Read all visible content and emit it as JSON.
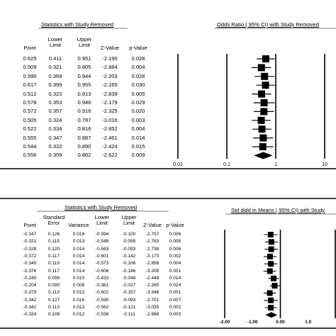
{
  "chart_data": [
    {
      "type": "table",
      "title": "Statistics with Study Removed",
      "columns": [
        "Point",
        "Lower\nLimit",
        "Upper\nLimit",
        "Z-Value",
        "p-Value"
      ],
      "rows": [
        [
          "0.625",
          "0.411",
          "0.951",
          "-2.195",
          "0.028"
        ],
        [
          "0.509",
          "0.321",
          "0.805",
          "-2.884",
          "0.004"
        ],
        [
          "0.590",
          "0.369",
          "0.944",
          "-2.203",
          "0.028"
        ],
        [
          "0.617",
          "0.399",
          "0.955",
          "-2.165",
          "0.030"
        ],
        [
          "0.512",
          "0.323",
          "0.813",
          "-2.839",
          "0.005"
        ],
        [
          "0.578",
          "0.353",
          "0.946",
          "-2.179",
          "0.029"
        ],
        [
          "0.572",
          "0.357",
          "0.916",
          "-2.325",
          "0.020"
        ],
        [
          "0.505",
          "0.324",
          "0.787",
          "-3.016",
          "0.003"
        ],
        [
          "0.522",
          "0.334",
          "0.816",
          "-2.852",
          "0.004"
        ],
        [
          "0.555",
          "0.347",
          "0.887",
          "-2.461",
          "0.014"
        ],
        [
          "0.544",
          "0.332",
          "0.890",
          "-2.424",
          "0.015"
        ],
        [
          "0.556",
          "0.359",
          "0.862",
          "-2.622",
          "0.009"
        ]
      ],
      "plot": {
        "type": "scatter",
        "title": "Odds Ratio ( 95% CI) with Study Removed",
        "xscale": "log",
        "xlim": [
          0.01,
          10
        ],
        "xticks": [
          "0.01",
          "0.1",
          "1",
          "10"
        ],
        "x": [
          0.625,
          0.509,
          0.59,
          0.617,
          0.512,
          0.578,
          0.572,
          0.505,
          0.522,
          0.555,
          0.544,
          0.556
        ],
        "lower": [
          0.411,
          0.321,
          0.369,
          0.399,
          0.323,
          0.353,
          0.357,
          0.324,
          0.334,
          0.347,
          0.332,
          0.359
        ],
        "upper": [
          0.951,
          0.805,
          0.944,
          0.955,
          0.813,
          0.946,
          0.916,
          0.787,
          0.816,
          0.887,
          0.89,
          0.862
        ],
        "summary_last_row": true
      }
    },
    {
      "type": "table",
      "title": "Statistics with Study Removed",
      "columns": [
        "Point",
        "Standard\nError",
        "Variance",
        "Lower\nLimit",
        "Upper\nLimit",
        "Z-Value",
        "p-Value"
      ],
      "rows": [
        [
          "-0.347",
          "0.126",
          "0.016",
          "-0.594",
          "-0.100",
          "-2.757",
          "0.006"
        ],
        [
          "-0.321",
          "0.115",
          "0.013",
          "-0.548",
          "-0.095",
          "-2.783",
          "0.005"
        ],
        [
          "-0.328",
          "0.120",
          "0.014",
          "-0.563",
          "-0.093",
          "-2.738",
          "0.006"
        ],
        [
          "-0.372",
          "0.117",
          "0.014",
          "-0.601",
          "-0.142",
          "-3.173",
          "0.002"
        ],
        [
          "-0.340",
          "0.119",
          "0.014",
          "-0.573",
          "-0.106",
          "-2.856",
          "0.004"
        ],
        [
          "-0.376",
          "0.117",
          "0.014",
          "-0.606",
          "-0.146",
          "-3.208",
          "0.001"
        ],
        [
          "-0.240",
          "0.098",
          "0.010",
          "-0.433",
          "-0.048",
          "-2.448",
          "0.014"
        ],
        [
          "-0.204",
          "0.090",
          "0.008",
          "-0.381",
          "-0.027",
          "-2.265",
          "0.024"
        ],
        [
          "-0.379",
          "0.113",
          "0.013",
          "-0.602",
          "-0.157",
          "-3.346",
          "0.001"
        ],
        [
          "-0.342",
          "0.127",
          "0.016",
          "-0.590",
          "-0.093",
          "-2.701",
          "0.007"
        ],
        [
          "-0.342",
          "0.113",
          "0.013",
          "-0.562",
          "-0.121",
          "-3.035",
          "0.002"
        ],
        [
          "-0.324",
          "0.108",
          "0.012",
          "-0.536",
          "-0.111",
          "-2.988",
          "0.003"
        ]
      ],
      "plot": {
        "type": "scatter",
        "title": "Std didd in Means ( 95% CI) with Study",
        "xlim": [
          -2.0,
          2.0
        ],
        "xticks": [
          "-2.00",
          "-1.00",
          "0.00",
          "1.0"
        ],
        "x": [
          -0.347,
          -0.321,
          -0.328,
          -0.372,
          -0.34,
          -0.376,
          -0.24,
          -0.204,
          -0.379,
          -0.342,
          -0.342,
          -0.324
        ],
        "lower": [
          -0.594,
          -0.548,
          -0.563,
          -0.601,
          -0.573,
          -0.606,
          -0.433,
          -0.381,
          -0.602,
          -0.59,
          -0.562,
          -0.536
        ],
        "upper": [
          -0.1,
          -0.095,
          -0.093,
          -0.142,
          -0.106,
          -0.146,
          -0.048,
          -0.027,
          -0.157,
          -0.093,
          -0.121,
          -0.111
        ],
        "summary_last_row": true
      }
    }
  ]
}
